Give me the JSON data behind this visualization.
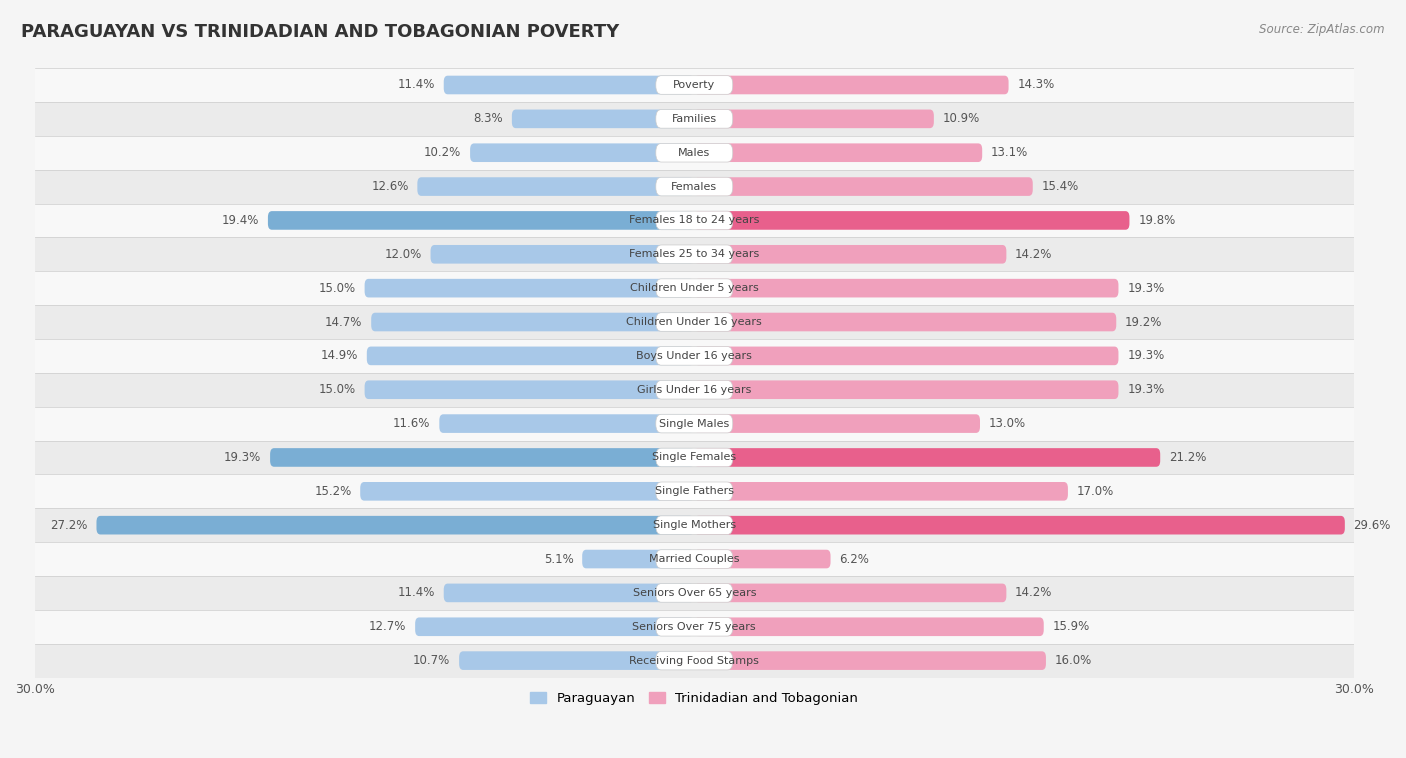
{
  "title": "PARAGUAYAN VS TRINIDADIAN AND TOBAGONIAN POVERTY",
  "source": "Source: ZipAtlas.com",
  "categories": [
    "Poverty",
    "Families",
    "Males",
    "Females",
    "Females 18 to 24 years",
    "Females 25 to 34 years",
    "Children Under 5 years",
    "Children Under 16 years",
    "Boys Under 16 years",
    "Girls Under 16 years",
    "Single Males",
    "Single Females",
    "Single Fathers",
    "Single Mothers",
    "Married Couples",
    "Seniors Over 65 years",
    "Seniors Over 75 years",
    "Receiving Food Stamps"
  ],
  "paraguayan": [
    11.4,
    8.3,
    10.2,
    12.6,
    19.4,
    12.0,
    15.0,
    14.7,
    14.9,
    15.0,
    11.6,
    19.3,
    15.2,
    27.2,
    5.1,
    11.4,
    12.7,
    10.7
  ],
  "trinidadian": [
    14.3,
    10.9,
    13.1,
    15.4,
    19.8,
    14.2,
    19.3,
    19.2,
    19.3,
    19.3,
    13.0,
    21.2,
    17.0,
    29.6,
    6.2,
    14.2,
    15.9,
    16.0
  ],
  "paraguayan_color": "#a8c8e8",
  "trinidadian_color": "#f0a0bc",
  "highlight_rows": [
    4,
    11,
    13
  ],
  "paraguayan_highlight_color": "#7aaed4",
  "trinidadian_highlight_color": "#e8608c",
  "xlim": 30.0,
  "bar_height": 0.55,
  "background_color": "#f5f5f5",
  "row_bg_light": "#f8f8f8",
  "row_bg_dark": "#ebebeb",
  "label_bg_color": "#ffffff",
  "legend_paraguayan": "Paraguayan",
  "legend_trinidadian": "Trinidadian and Tobagonian",
  "value_fontsize": 8.5,
  "cat_fontsize": 8.0,
  "title_fontsize": 13,
  "source_fontsize": 8.5
}
